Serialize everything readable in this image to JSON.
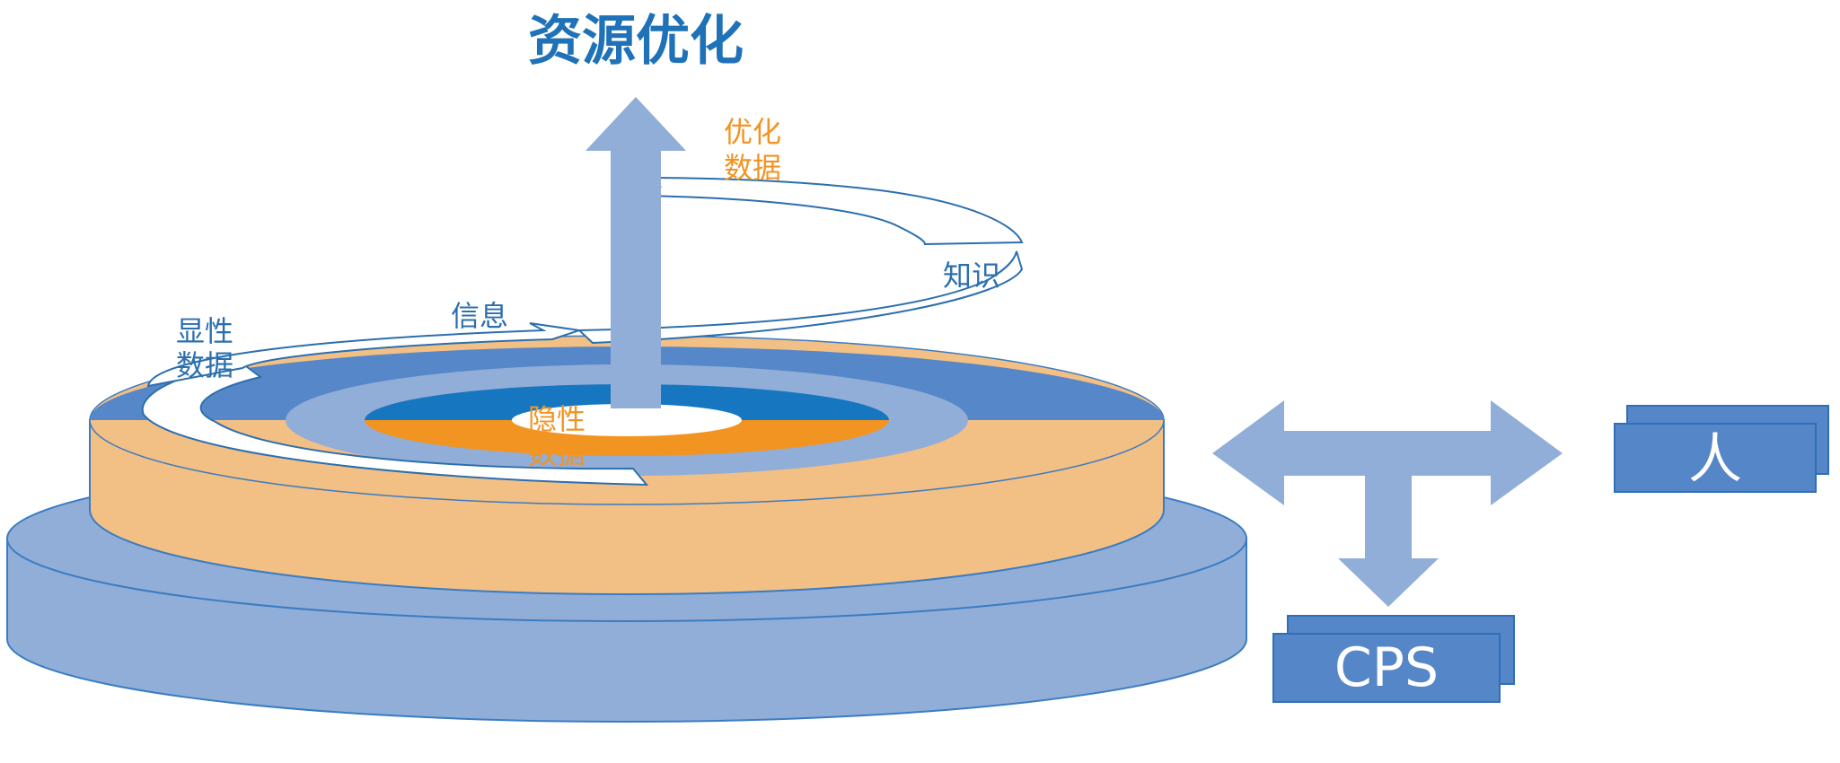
{
  "title": "资源优化",
  "labels": {
    "optimized_data": [
      "优化",
      "数据"
    ],
    "knowledge": "知识",
    "information": "信息",
    "explicit_data": [
      "显性",
      "数据"
    ],
    "implicit_data": [
      "隐性",
      "数据"
    ]
  },
  "boxes": {
    "person": "人",
    "cps": "CPS"
  },
  "colors": {
    "title_blue": "#1f72b8",
    "outer_disk": "#91aed8",
    "outer_disk_stroke": "#3a7cc2",
    "mid_cylinder": "#f2bf85",
    "top_ring": "#5687c8",
    "inner_ring": "#91aed8",
    "core_blue": "#1677c0",
    "core_orange": "#f29422",
    "arrow_light": "#91aed8",
    "box_fill": "#5586c7",
    "box_stroke": "#2f6fb8",
    "label_blue": "#2c6fae",
    "label_orange": "#f29422"
  },
  "icons": {
    "up_arrow": "arrow-up-icon",
    "tee_arrow": "three-way-arrow-icon"
  }
}
